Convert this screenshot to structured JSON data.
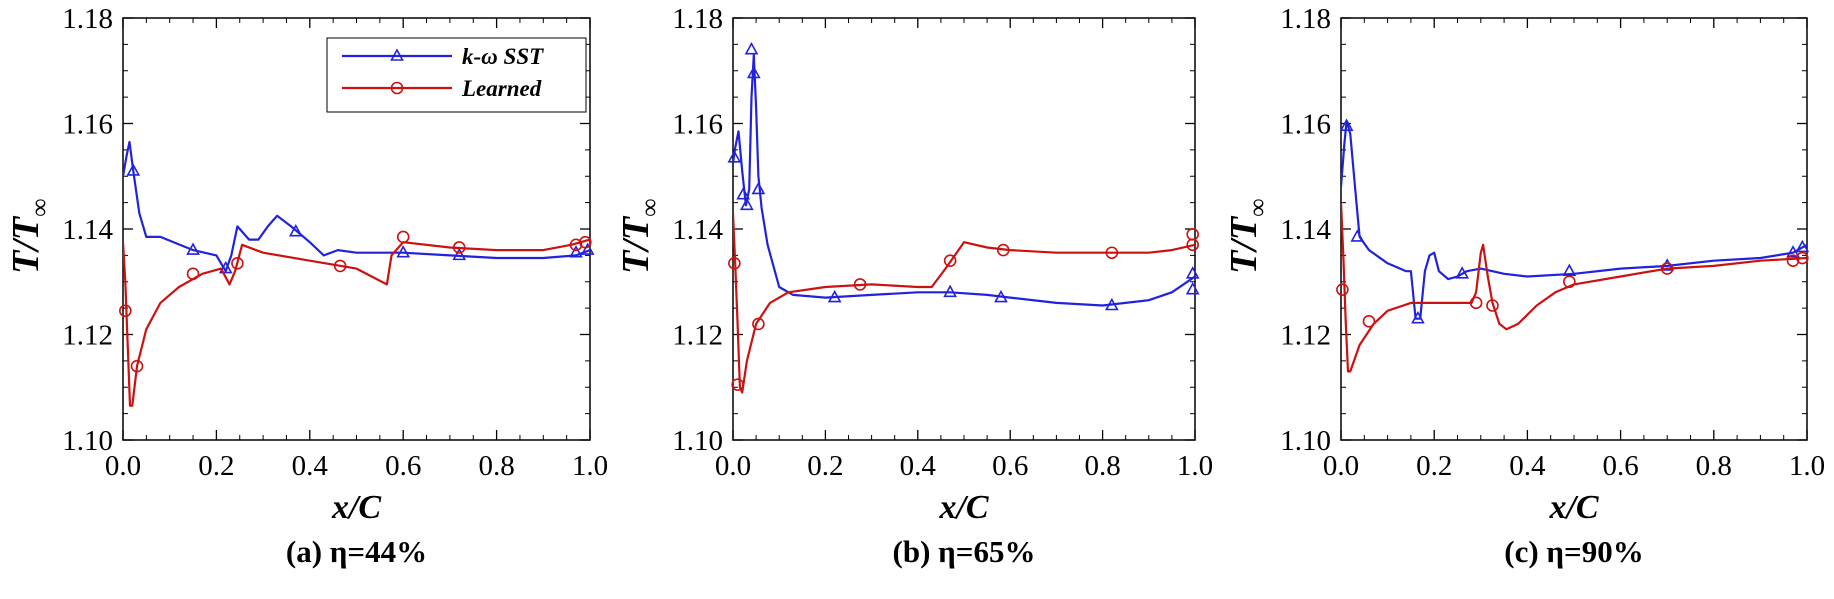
{
  "colors": {
    "sst": "#2222dd",
    "learned": "#cc1111",
    "axis": "#000000"
  },
  "legend": {
    "series1": "k-ω SST",
    "series2": "Learned"
  },
  "xlabel": "x/C",
  "ylabel_main": "T/T",
  "ylabel_sub": "∞",
  "chart_data": [
    {
      "type": "line",
      "caption": "(a) η=44%",
      "xlim": [
        0,
        1
      ],
      "ylim": [
        1.1,
        1.18
      ],
      "x_ticks": [
        "0.0",
        "0.2",
        "0.4",
        "0.6",
        "0.8",
        "1.0"
      ],
      "y_ticks": [
        "1.10",
        "1.12",
        "1.14",
        "1.16",
        "1.18"
      ],
      "legend_position": "top-right",
      "series": [
        {
          "name": "k-ω SST",
          "curve": [
            [
              0,
              1.15
            ],
            [
              0.008,
              1.154
            ],
            [
              0.014,
              1.1565
            ],
            [
              0.022,
              1.151
            ],
            [
              0.035,
              1.143
            ],
            [
              0.05,
              1.1385
            ],
            [
              0.08,
              1.1385
            ],
            [
              0.15,
              1.136
            ],
            [
              0.2,
              1.135
            ],
            [
              0.22,
              1.132
            ],
            [
              0.232,
              1.135
            ],
            [
              0.245,
              1.1405
            ],
            [
              0.27,
              1.138
            ],
            [
              0.29,
              1.138
            ],
            [
              0.31,
              1.1405
            ],
            [
              0.33,
              1.1425
            ],
            [
              0.36,
              1.1405
            ],
            [
              0.4,
              1.1375
            ],
            [
              0.43,
              1.135
            ],
            [
              0.46,
              1.136
            ],
            [
              0.5,
              1.1355
            ],
            [
              0.6,
              1.1355
            ],
            [
              0.7,
              1.135
            ],
            [
              0.8,
              1.1345
            ],
            [
              0.9,
              1.1345
            ],
            [
              0.97,
              1.135
            ],
            [
              1.0,
              1.136
            ]
          ],
          "markers": [
            [
              0.022,
              1.151
            ],
            [
              0.15,
              1.136
            ],
            [
              0.22,
              1.1325
            ],
            [
              0.37,
              1.1395
            ],
            [
              0.6,
              1.1355
            ],
            [
              0.72,
              1.135
            ],
            [
              0.97,
              1.1355
            ],
            [
              0.995,
              1.136
            ]
          ]
        },
        {
          "name": "Learned",
          "curve": [
            [
              0,
              1.1375
            ],
            [
              0.005,
              1.13
            ],
            [
              0.01,
              1.118
            ],
            [
              0.015,
              1.1065
            ],
            [
              0.02,
              1.1065
            ],
            [
              0.03,
              1.114
            ],
            [
              0.05,
              1.121
            ],
            [
              0.08,
              1.126
            ],
            [
              0.12,
              1.129
            ],
            [
              0.17,
              1.1315
            ],
            [
              0.21,
              1.1325
            ],
            [
              0.228,
              1.1295
            ],
            [
              0.24,
              1.132
            ],
            [
              0.255,
              1.137
            ],
            [
              0.3,
              1.1355
            ],
            [
              0.4,
              1.134
            ],
            [
              0.5,
              1.1325
            ],
            [
              0.565,
              1.1295
            ],
            [
              0.575,
              1.135
            ],
            [
              0.6,
              1.1375
            ],
            [
              0.7,
              1.1365
            ],
            [
              0.8,
              1.136
            ],
            [
              0.9,
              1.136
            ],
            [
              0.96,
              1.137
            ],
            [
              1.0,
              1.138
            ]
          ],
          "markers": [
            [
              0.005,
              1.1245
            ],
            [
              0.03,
              1.114
            ],
            [
              0.15,
              1.1315
            ],
            [
              0.245,
              1.1335
            ],
            [
              0.465,
              1.133
            ],
            [
              0.6,
              1.1385
            ],
            [
              0.72,
              1.1365
            ],
            [
              0.97,
              1.137
            ],
            [
              0.99,
              1.1375
            ]
          ]
        }
      ]
    },
    {
      "type": "line",
      "caption": "(b) η=65%",
      "xlim": [
        0,
        1
      ],
      "ylim": [
        1.1,
        1.18
      ],
      "x_ticks": [
        "0.0",
        "0.2",
        "0.4",
        "0.6",
        "0.8",
        "1.0"
      ],
      "y_ticks": [
        "1.10",
        "1.12",
        "1.14",
        "1.16",
        "1.18"
      ],
      "series": [
        {
          "name": "k-ω SST",
          "curve": [
            [
              0,
              1.1525
            ],
            [
              0.005,
              1.1555
            ],
            [
              0.012,
              1.1585
            ],
            [
              0.02,
              1.151
            ],
            [
              0.028,
              1.1445
            ],
            [
              0.035,
              1.1475
            ],
            [
              0.04,
              1.165
            ],
            [
              0.045,
              1.173
            ],
            [
              0.05,
              1.163
            ],
            [
              0.055,
              1.15
            ],
            [
              0.062,
              1.144
            ],
            [
              0.075,
              1.137
            ],
            [
              0.1,
              1.129
            ],
            [
              0.13,
              1.1275
            ],
            [
              0.2,
              1.127
            ],
            [
              0.3,
              1.1275
            ],
            [
              0.4,
              1.128
            ],
            [
              0.47,
              1.128
            ],
            [
              0.55,
              1.1275
            ],
            [
              0.6,
              1.127
            ],
            [
              0.7,
              1.126
            ],
            [
              0.8,
              1.1255
            ],
            [
              0.9,
              1.1265
            ],
            [
              0.95,
              1.128
            ],
            [
              1.0,
              1.131
            ]
          ],
          "markers": [
            [
              0.003,
              1.1535
            ],
            [
              0.022,
              1.1465
            ],
            [
              0.03,
              1.1445
            ],
            [
              0.04,
              1.174
            ],
            [
              0.045,
              1.1695
            ],
            [
              0.055,
              1.1475
            ],
            [
              0.22,
              1.127
            ],
            [
              0.47,
              1.128
            ],
            [
              0.58,
              1.127
            ],
            [
              0.82,
              1.1255
            ],
            [
              0.995,
              1.1315
            ],
            [
              0.995,
              1.1285
            ]
          ]
        },
        {
          "name": "Learned",
          "curve": [
            [
              0,
              1.143
            ],
            [
              0.005,
              1.133
            ],
            [
              0.01,
              1.122
            ],
            [
              0.015,
              1.11
            ],
            [
              0.02,
              1.109
            ],
            [
              0.03,
              1.115
            ],
            [
              0.05,
              1.122
            ],
            [
              0.08,
              1.126
            ],
            [
              0.12,
              1.128
            ],
            [
              0.2,
              1.129
            ],
            [
              0.3,
              1.1295
            ],
            [
              0.4,
              1.129
            ],
            [
              0.43,
              1.129
            ],
            [
              0.46,
              1.1325
            ],
            [
              0.48,
              1.135
            ],
            [
              0.5,
              1.1375
            ],
            [
              0.55,
              1.1365
            ],
            [
              0.6,
              1.136
            ],
            [
              0.7,
              1.1355
            ],
            [
              0.8,
              1.1355
            ],
            [
              0.9,
              1.1355
            ],
            [
              0.95,
              1.136
            ],
            [
              1.0,
              1.137
            ]
          ],
          "markers": [
            [
              0.003,
              1.1335
            ],
            [
              0.01,
              1.1105
            ],
            [
              0.055,
              1.122
            ],
            [
              0.275,
              1.1295
            ],
            [
              0.47,
              1.134
            ],
            [
              0.585,
              1.136
            ],
            [
              0.82,
              1.1355
            ],
            [
              0.995,
              1.137
            ],
            [
              0.995,
              1.139
            ]
          ]
        }
      ]
    },
    {
      "type": "line",
      "caption": "(c) η=90%",
      "xlim": [
        0,
        1
      ],
      "ylim": [
        1.1,
        1.18
      ],
      "x_ticks": [
        "0.0",
        "0.2",
        "0.4",
        "0.6",
        "0.8",
        "1.0"
      ],
      "y_ticks": [
        "1.10",
        "1.12",
        "1.14",
        "1.16",
        "1.18"
      ],
      "series": [
        {
          "name": "k-ω SST",
          "curve": [
            [
              0,
              1.148
            ],
            [
              0.007,
              1.156
            ],
            [
              0.012,
              1.1605
            ],
            [
              0.02,
              1.158
            ],
            [
              0.03,
              1.148
            ],
            [
              0.04,
              1.1385
            ],
            [
              0.06,
              1.136
            ],
            [
              0.1,
              1.1335
            ],
            [
              0.14,
              1.132
            ],
            [
              0.15,
              1.132
            ],
            [
              0.16,
              1.123
            ],
            [
              0.17,
              1.123
            ],
            [
              0.18,
              1.132
            ],
            [
              0.19,
              1.135
            ],
            [
              0.2,
              1.1355
            ],
            [
              0.21,
              1.132
            ],
            [
              0.23,
              1.1305
            ],
            [
              0.25,
              1.131
            ],
            [
              0.27,
              1.132
            ],
            [
              0.3,
              1.1325
            ],
            [
              0.35,
              1.1315
            ],
            [
              0.4,
              1.131
            ],
            [
              0.5,
              1.1315
            ],
            [
              0.6,
              1.1325
            ],
            [
              0.7,
              1.133
            ],
            [
              0.8,
              1.134
            ],
            [
              0.9,
              1.1345
            ],
            [
              0.97,
              1.1355
            ],
            [
              1.0,
              1.137
            ]
          ],
          "markers": [
            [
              0.012,
              1.1595
            ],
            [
              0.035,
              1.1385
            ],
            [
              0.165,
              1.123
            ],
            [
              0.26,
              1.1315
            ],
            [
              0.49,
              1.132
            ],
            [
              0.7,
              1.133
            ],
            [
              0.97,
              1.1355
            ],
            [
              0.99,
              1.1365
            ]
          ]
        },
        {
          "name": "Learned",
          "curve": [
            [
              0,
              1.145
            ],
            [
              0.005,
              1.135
            ],
            [
              0.01,
              1.1225
            ],
            [
              0.015,
              1.113
            ],
            [
              0.02,
              1.113
            ],
            [
              0.04,
              1.118
            ],
            [
              0.07,
              1.122
            ],
            [
              0.1,
              1.1245
            ],
            [
              0.15,
              1.126
            ],
            [
              0.2,
              1.126
            ],
            [
              0.26,
              1.126
            ],
            [
              0.28,
              1.126
            ],
            [
              0.29,
              1.128
            ],
            [
              0.3,
              1.1355
            ],
            [
              0.305,
              1.137
            ],
            [
              0.315,
              1.131
            ],
            [
              0.325,
              1.126
            ],
            [
              0.34,
              1.122
            ],
            [
              0.355,
              1.121
            ],
            [
              0.38,
              1.122
            ],
            [
              0.42,
              1.1255
            ],
            [
              0.46,
              1.128
            ],
            [
              0.5,
              1.1295
            ],
            [
              0.6,
              1.131
            ],
            [
              0.7,
              1.1325
            ],
            [
              0.8,
              1.133
            ],
            [
              0.9,
              1.134
            ],
            [
              1.0,
              1.1345
            ]
          ],
          "markers": [
            [
              0.003,
              1.1285
            ],
            [
              0.06,
              1.1225
            ],
            [
              0.29,
              1.126
            ],
            [
              0.325,
              1.1255
            ],
            [
              0.49,
              1.13
            ],
            [
              0.7,
              1.1325
            ],
            [
              0.97,
              1.134
            ],
            [
              0.99,
              1.1345
            ]
          ]
        }
      ]
    }
  ]
}
